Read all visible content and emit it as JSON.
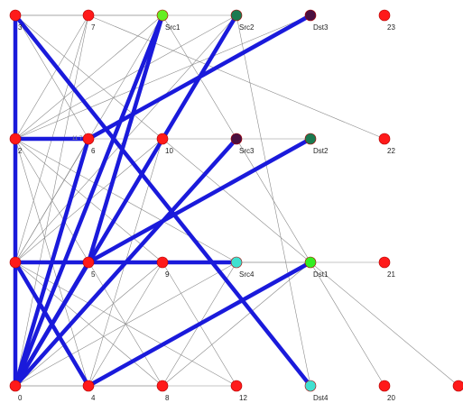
{
  "graph": {
    "nodes": [
      {
        "id": "0",
        "label": "0",
        "color": "#ff1a1a"
      },
      {
        "id": "4",
        "label": "4",
        "color": "#ff1a1a"
      },
      {
        "id": "8",
        "label": "8",
        "color": "#ff1a1a"
      },
      {
        "id": "12",
        "label": "12",
        "color": "#ff1a1a"
      },
      {
        "id": "Dst4",
        "label": "Dst4",
        "color": "#40e0d0"
      },
      {
        "id": "20",
        "label": "20",
        "color": "#ff1a1a"
      },
      {
        "id": "n24",
        "label": "",
        "color": "#ff1a1a"
      },
      {
        "id": "1",
        "label": "",
        "color": "#ff1a1a"
      },
      {
        "id": "5",
        "label": "5",
        "color": "#ff1a1a"
      },
      {
        "id": "9",
        "label": "9",
        "color": "#ff1a1a"
      },
      {
        "id": "Src4",
        "label": "Src4",
        "color": "#40e0d0"
      },
      {
        "id": "Dst1",
        "label": "Dst1",
        "color": "#33ee22"
      },
      {
        "id": "21",
        "label": "21",
        "color": "#ff1a1a"
      },
      {
        "id": "2",
        "label": "2",
        "color": "#ff1a1a"
      },
      {
        "id": "6",
        "label": "6",
        "color": "#ff1a1a"
      },
      {
        "id": "10",
        "label": "10",
        "color": "#ff1a1a"
      },
      {
        "id": "Src3",
        "label": "Src3",
        "color": "#4a1040"
      },
      {
        "id": "Dst2",
        "label": "Dst2",
        "color": "#1a7a50"
      },
      {
        "id": "22",
        "label": "22",
        "color": "#ff1a1a"
      },
      {
        "id": "3",
        "label": "3",
        "color": "#ff1a1a"
      },
      {
        "id": "7",
        "label": "7",
        "color": "#ff1a1a"
      },
      {
        "id": "Src1",
        "label": "Src1",
        "color": "#66ee22"
      },
      {
        "id": "Src2",
        "label": "Src2",
        "color": "#1a7a50"
      },
      {
        "id": "Dst3",
        "label": "Dst3",
        "color": "#4a1040"
      },
      {
        "id": "23",
        "label": "23",
        "color": "#ff1a1a"
      }
    ],
    "stray_label": "11 7",
    "thick_edges": [
      [
        "3",
        "2"
      ],
      [
        "2",
        "1"
      ],
      [
        "1",
        "0"
      ],
      [
        "3",
        "Dst4"
      ],
      [
        "0",
        "6"
      ],
      [
        "0",
        "Src1"
      ],
      [
        "0",
        "Src2"
      ],
      [
        "0",
        "Src3"
      ],
      [
        "1",
        "Src4"
      ],
      [
        "1",
        "4"
      ],
      [
        "0",
        "5"
      ],
      [
        "5",
        "Src1"
      ],
      [
        "5",
        "Dst2"
      ],
      [
        "4",
        "Dst1"
      ],
      [
        "2",
        "6"
      ],
      [
        "6",
        "Dst3"
      ]
    ],
    "thin_edges": [
      [
        "2",
        "10"
      ],
      [
        "10",
        "Src3"
      ],
      [
        "1",
        "9"
      ],
      [
        "0",
        "12"
      ],
      [
        "3",
        "Src1"
      ],
      [
        "3",
        "Src2"
      ],
      [
        "3",
        "6"
      ],
      [
        "3",
        "10"
      ],
      [
        "2",
        "7"
      ],
      [
        "2",
        "Src1"
      ],
      [
        "2",
        "Src2"
      ],
      [
        "2",
        "Dst3"
      ],
      [
        "2",
        "9"
      ],
      [
        "2",
        "Src4"
      ],
      [
        "2",
        "4"
      ],
      [
        "2",
        "8"
      ],
      [
        "1",
        "7"
      ],
      [
        "1",
        "Src1"
      ],
      [
        "1",
        "Src2"
      ],
      [
        "1",
        "6"
      ],
      [
        "1",
        "10"
      ],
      [
        "1",
        "12"
      ],
      [
        "1",
        "8"
      ],
      [
        "0",
        "7"
      ],
      [
        "0",
        "10"
      ],
      [
        "0",
        "9"
      ],
      [
        "0",
        "Src4"
      ],
      [
        "0",
        "8"
      ],
      [
        "4",
        "10"
      ],
      [
        "4",
        "9"
      ],
      [
        "8",
        "Dst1"
      ],
      [
        "8",
        "Src4"
      ],
      [
        "12",
        "9"
      ],
      [
        "7",
        "22"
      ],
      [
        "Src1",
        "20"
      ],
      [
        "Src2",
        "Dst4"
      ],
      [
        "10",
        "n24"
      ],
      [
        "9",
        "21"
      ],
      [
        "Src3",
        "Dst2"
      ],
      [
        "5",
        "Dst1"
      ]
    ],
    "colors": {
      "thick_edge": "#1a1adb",
      "thin_edge": "#8a8a8a",
      "node_stroke": "#b00000"
    }
  }
}
